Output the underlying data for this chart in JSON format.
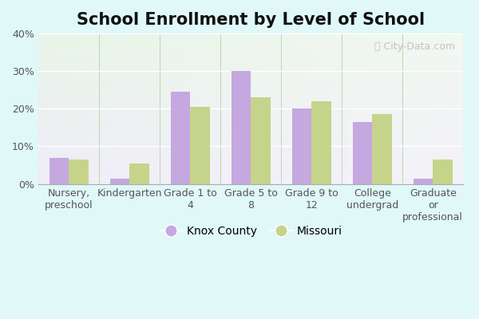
{
  "title": "School Enrollment by Level of School",
  "categories": [
    "Nursery,\npreschool",
    "Kindergarten",
    "Grade 1 to\n4",
    "Grade 5 to\n8",
    "Grade 9 to\n12",
    "College\nundergrad",
    "Graduate\nor\nprofessional"
  ],
  "knox_values": [
    7.0,
    1.5,
    24.5,
    30.0,
    20.0,
    16.5,
    1.5
  ],
  "missouri_values": [
    6.5,
    5.5,
    20.5,
    23.0,
    22.0,
    18.5,
    6.5
  ],
  "knox_color": "#c5a8df",
  "missouri_color": "#c5d48a",
  "ylim": [
    0,
    40
  ],
  "yticks": [
    0,
    10,
    20,
    30,
    40
  ],
  "legend_labels": [
    "Knox County",
    "Missouri"
  ],
  "watermark": "ⓘ City-Data.com",
  "title_fontsize": 15,
  "tick_fontsize": 9,
  "legend_fontsize": 10,
  "bar_width": 0.32,
  "fig_bg": "#e0f8f8",
  "plot_bg_top_left": "#e8f5e8",
  "plot_bg_bottom_right": "#f5f0fc"
}
